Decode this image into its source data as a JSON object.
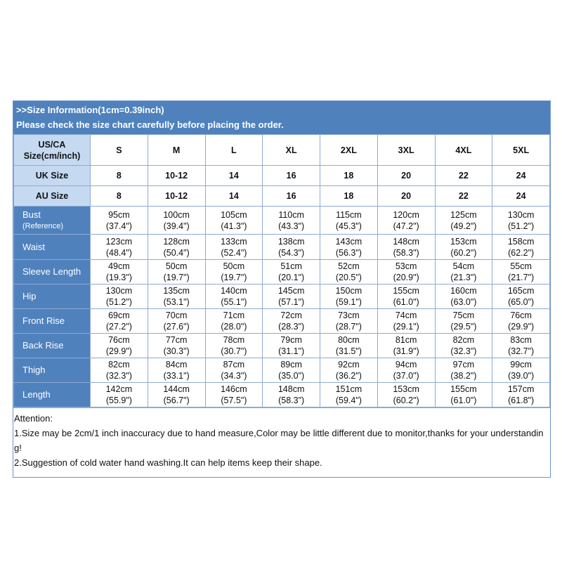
{
  "banner": {
    "line1": ">>Size Information(1cm=0.39inch)",
    "line2": "Please check the size chart carefully before placing the order."
  },
  "size_rows": [
    {
      "label_lines": [
        "US/CA",
        "Size(cm/inch)"
      ],
      "values": [
        "S",
        "M",
        "L",
        "XL",
        "2XL",
        "3XL",
        "4XL",
        "5XL"
      ]
    },
    {
      "label_lines": [
        "UK Size"
      ],
      "values": [
        "8",
        "10-12",
        "14",
        "16",
        "18",
        "20",
        "22",
        "24"
      ]
    },
    {
      "label_lines": [
        "AU Size"
      ],
      "values": [
        "8",
        "10-12",
        "14",
        "16",
        "18",
        "20",
        "22",
        "24"
      ]
    }
  ],
  "measurements": [
    {
      "name": "Bust",
      "sub": "(Reference)",
      "values": [
        [
          "95cm",
          "(37.4\")"
        ],
        [
          "100cm",
          "(39.4\")"
        ],
        [
          "105cm",
          "(41.3\")"
        ],
        [
          "110cm",
          "(43.3\")"
        ],
        [
          "115cm",
          "(45.3\")"
        ],
        [
          "120cm",
          "(47.2\")"
        ],
        [
          "125cm",
          "(49.2\")"
        ],
        [
          "130cm",
          "(51.2\")"
        ]
      ]
    },
    {
      "name": "Waist",
      "sub": "",
      "values": [
        [
          "123cm",
          "(48.4\")"
        ],
        [
          "128cm",
          "(50.4\")"
        ],
        [
          "133cm",
          "(52.4\")"
        ],
        [
          "138cm",
          "(54.3\")"
        ],
        [
          "143cm",
          "(56.3\")"
        ],
        [
          "148cm",
          "(58.3\")"
        ],
        [
          "153cm",
          "(60.2\")"
        ],
        [
          "158cm",
          "(62.2\")"
        ]
      ]
    },
    {
      "name": "Sleeve Length",
      "sub": "",
      "values": [
        [
          "49cm",
          "(19.3\")"
        ],
        [
          "50cm",
          "(19.7\")"
        ],
        [
          "50cm",
          "(19.7\")"
        ],
        [
          "51cm",
          "(20.1\")"
        ],
        [
          "52cm",
          "(20.5\")"
        ],
        [
          "53cm",
          "(20.9\")"
        ],
        [
          "54cm",
          "(21.3\")"
        ],
        [
          "55cm",
          "(21.7\")"
        ]
      ]
    },
    {
      "name": "Hip",
      "sub": "",
      "values": [
        [
          "130cm",
          "(51.2\")"
        ],
        [
          "135cm",
          "(53.1\")"
        ],
        [
          "140cm",
          "(55.1\")"
        ],
        [
          "145cm",
          "(57.1\")"
        ],
        [
          "150cm",
          "(59.1\")"
        ],
        [
          "155cm",
          "(61.0\")"
        ],
        [
          "160cm",
          "(63.0\")"
        ],
        [
          "165cm",
          "(65.0\")"
        ]
      ]
    },
    {
      "name": "Front Rise",
      "sub": "",
      "values": [
        [
          "69cm",
          "(27.2\")"
        ],
        [
          "70cm",
          "(27.6\")"
        ],
        [
          "71cm",
          "(28.0\")"
        ],
        [
          "72cm",
          "(28.3\")"
        ],
        [
          "73cm",
          "(28.7\")"
        ],
        [
          "74cm",
          "(29.1\")"
        ],
        [
          "75cm",
          "(29.5\")"
        ],
        [
          "76cm",
          "(29.9\")"
        ]
      ]
    },
    {
      "name": "Back Rise",
      "sub": "",
      "values": [
        [
          "76cm",
          "(29.9\")"
        ],
        [
          "77cm",
          "(30.3\")"
        ],
        [
          "78cm",
          "(30.7\")"
        ],
        [
          "79cm",
          "(31.1\")"
        ],
        [
          "80cm",
          "(31.5\")"
        ],
        [
          "81cm",
          "(31.9\")"
        ],
        [
          "82cm",
          "(32.3\")"
        ],
        [
          "83cm",
          "(32.7\")"
        ]
      ]
    },
    {
      "name": "Thigh",
      "sub": "",
      "values": [
        [
          "82cm",
          "(32.3\")"
        ],
        [
          "84cm",
          "(33.1\")"
        ],
        [
          "87cm",
          "(34.3\")"
        ],
        [
          "89cm",
          "(35.0\")"
        ],
        [
          "92cm",
          "(36.2\")"
        ],
        [
          "94cm",
          "(37.0\")"
        ],
        [
          "97cm",
          "(38.2\")"
        ],
        [
          "99cm",
          "(39.0\")"
        ]
      ]
    },
    {
      "name": "Length",
      "sub": "",
      "values": [
        [
          "142cm",
          "(55.9\")"
        ],
        [
          "144cm",
          "(56.7\")"
        ],
        [
          "146cm",
          "(57.5\")"
        ],
        [
          "148cm",
          "(58.3\")"
        ],
        [
          "151cm",
          "(59.4\")"
        ],
        [
          "153cm",
          "(60.2\")"
        ],
        [
          "155cm",
          "(61.0\")"
        ],
        [
          "157cm",
          "(61.8\")"
        ]
      ]
    }
  ],
  "notes": [
    "Attention:",
    "1.Size may be 2cm/1 inch inaccuracy due to hand measure,Color may be little different due to monitor,thanks for your understanding!",
    "2.Suggestion of cold water hand washing.It can help items keep their shape."
  ],
  "colors": {
    "banner_bg": "#4f81bd",
    "header_bg": "#c5d9f1",
    "border": "#8eaad2",
    "text": "#111111"
  }
}
